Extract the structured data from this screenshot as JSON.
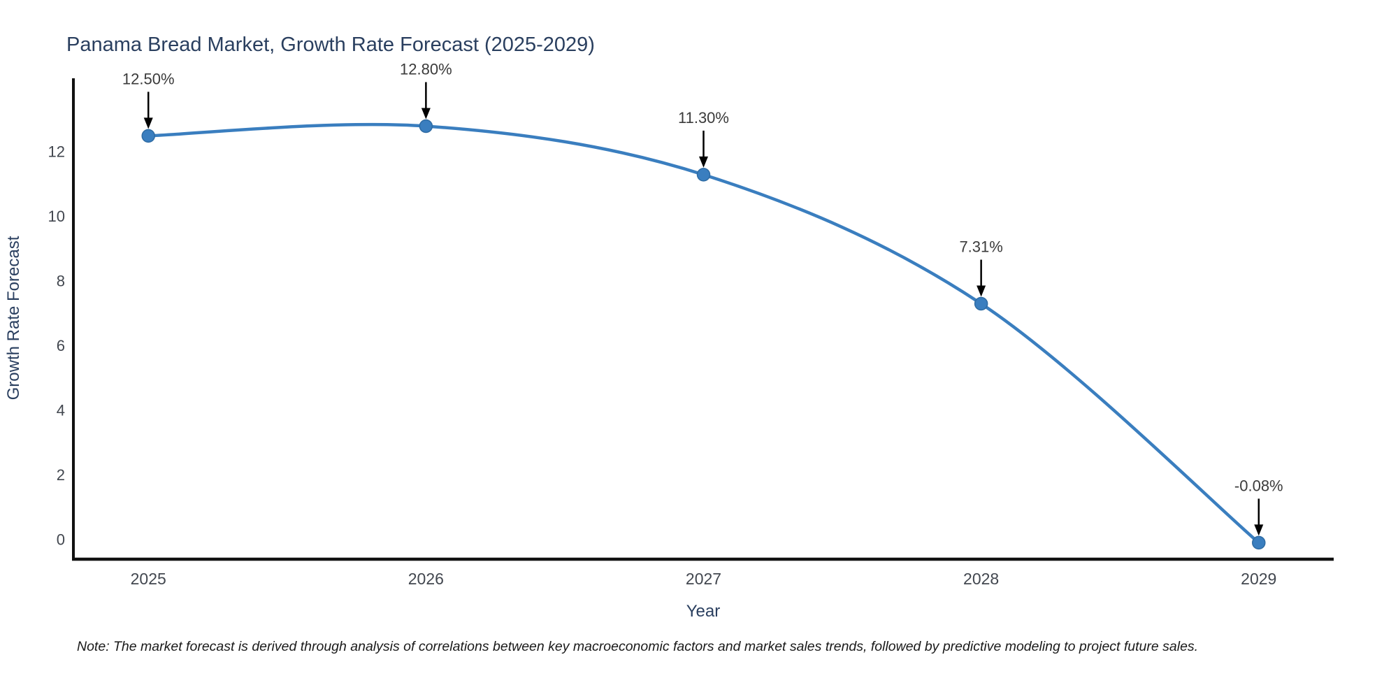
{
  "page": {
    "background": "#ffffff"
  },
  "note": "Note: The market forecast is derived through analysis of correlations between key macroeconomic factors and market sales trends, followed by predictive modeling to project future sales.",
  "chart_data": {
    "type": "line",
    "title": "Panama Bread Market, Growth Rate Forecast (2025-2029)",
    "xlabel": "Year",
    "ylabel": "Growth Rate Forecast",
    "x": [
      2025,
      2026,
      2027,
      2028,
      2029
    ],
    "x_tick_labels": [
      "2025",
      "2026",
      "2027",
      "2028",
      "2029"
    ],
    "values": [
      12.5,
      12.8,
      11.3,
      7.31,
      -0.08
    ],
    "point_labels": [
      "12.50%",
      "12.80%",
      "11.30%",
      "7.31%",
      "-0.08%"
    ],
    "y_ticks": [
      0,
      2,
      4,
      6,
      8,
      10,
      12
    ],
    "xlim": [
      2024.73,
      2029.27
    ],
    "ylim": [
      -0.59,
      14.28
    ],
    "grid": false,
    "legend": "none",
    "line_shape": "spline",
    "annotation_arrows": "down-to-point",
    "colors": {
      "line": "#3a7ebf",
      "marker": "#3a7ebf",
      "marker_edge": "#2e6ba3",
      "axis": "#111111",
      "title_text": "#2a3f5f",
      "axis_title_text": "#2a3f5f",
      "tick_text": "#42474f",
      "annotation_text": "#3b3b3b",
      "annotation_arrow": "#000000"
    }
  }
}
